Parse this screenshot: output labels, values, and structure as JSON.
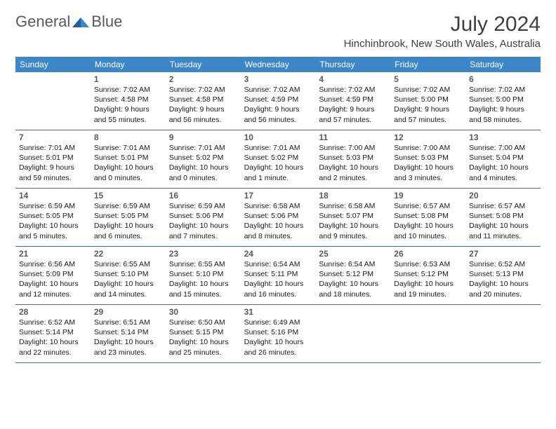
{
  "logo": {
    "text1": "General",
    "text2": "Blue"
  },
  "month_title": "July 2024",
  "location": "Hinchinbrook, New South Wales, Australia",
  "weekdays": [
    "Sunday",
    "Monday",
    "Tuesday",
    "Wednesday",
    "Thursday",
    "Friday",
    "Saturday"
  ],
  "colors": {
    "header_bg": "#3b87c8",
    "row_border": "#3b6fa0",
    "text": "#1a1a1a",
    "title": "#404040"
  },
  "weeks": [
    [
      {},
      {
        "n": "1",
        "sr": "7:02 AM",
        "ss": "4:58 PM",
        "dl": "9 hours and 55 minutes."
      },
      {
        "n": "2",
        "sr": "7:02 AM",
        "ss": "4:58 PM",
        "dl": "9 hours and 56 minutes."
      },
      {
        "n": "3",
        "sr": "7:02 AM",
        "ss": "4:59 PM",
        "dl": "9 hours and 56 minutes."
      },
      {
        "n": "4",
        "sr": "7:02 AM",
        "ss": "4:59 PM",
        "dl": "9 hours and 57 minutes."
      },
      {
        "n": "5",
        "sr": "7:02 AM",
        "ss": "5:00 PM",
        "dl": "9 hours and 57 minutes."
      },
      {
        "n": "6",
        "sr": "7:02 AM",
        "ss": "5:00 PM",
        "dl": "9 hours and 58 minutes."
      }
    ],
    [
      {
        "n": "7",
        "sr": "7:01 AM",
        "ss": "5:01 PM",
        "dl": "9 hours and 59 minutes."
      },
      {
        "n": "8",
        "sr": "7:01 AM",
        "ss": "5:01 PM",
        "dl": "10 hours and 0 minutes."
      },
      {
        "n": "9",
        "sr": "7:01 AM",
        "ss": "5:02 PM",
        "dl": "10 hours and 0 minutes."
      },
      {
        "n": "10",
        "sr": "7:01 AM",
        "ss": "5:02 PM",
        "dl": "10 hours and 1 minute."
      },
      {
        "n": "11",
        "sr": "7:00 AM",
        "ss": "5:03 PM",
        "dl": "10 hours and 2 minutes."
      },
      {
        "n": "12",
        "sr": "7:00 AM",
        "ss": "5:03 PM",
        "dl": "10 hours and 3 minutes."
      },
      {
        "n": "13",
        "sr": "7:00 AM",
        "ss": "5:04 PM",
        "dl": "10 hours and 4 minutes."
      }
    ],
    [
      {
        "n": "14",
        "sr": "6:59 AM",
        "ss": "5:05 PM",
        "dl": "10 hours and 5 minutes."
      },
      {
        "n": "15",
        "sr": "6:59 AM",
        "ss": "5:05 PM",
        "dl": "10 hours and 6 minutes."
      },
      {
        "n": "16",
        "sr": "6:59 AM",
        "ss": "5:06 PM",
        "dl": "10 hours and 7 minutes."
      },
      {
        "n": "17",
        "sr": "6:58 AM",
        "ss": "5:06 PM",
        "dl": "10 hours and 8 minutes."
      },
      {
        "n": "18",
        "sr": "6:58 AM",
        "ss": "5:07 PM",
        "dl": "10 hours and 9 minutes."
      },
      {
        "n": "19",
        "sr": "6:57 AM",
        "ss": "5:08 PM",
        "dl": "10 hours and 10 minutes."
      },
      {
        "n": "20",
        "sr": "6:57 AM",
        "ss": "5:08 PM",
        "dl": "10 hours and 11 minutes."
      }
    ],
    [
      {
        "n": "21",
        "sr": "6:56 AM",
        "ss": "5:09 PM",
        "dl": "10 hours and 12 minutes."
      },
      {
        "n": "22",
        "sr": "6:55 AM",
        "ss": "5:10 PM",
        "dl": "10 hours and 14 minutes."
      },
      {
        "n": "23",
        "sr": "6:55 AM",
        "ss": "5:10 PM",
        "dl": "10 hours and 15 minutes."
      },
      {
        "n": "24",
        "sr": "6:54 AM",
        "ss": "5:11 PM",
        "dl": "10 hours and 16 minutes."
      },
      {
        "n": "25",
        "sr": "6:54 AM",
        "ss": "5:12 PM",
        "dl": "10 hours and 18 minutes."
      },
      {
        "n": "26",
        "sr": "6:53 AM",
        "ss": "5:12 PM",
        "dl": "10 hours and 19 minutes."
      },
      {
        "n": "27",
        "sr": "6:52 AM",
        "ss": "5:13 PM",
        "dl": "10 hours and 20 minutes."
      }
    ],
    [
      {
        "n": "28",
        "sr": "6:52 AM",
        "ss": "5:14 PM",
        "dl": "10 hours and 22 minutes."
      },
      {
        "n": "29",
        "sr": "6:51 AM",
        "ss": "5:14 PM",
        "dl": "10 hours and 23 minutes."
      },
      {
        "n": "30",
        "sr": "6:50 AM",
        "ss": "5:15 PM",
        "dl": "10 hours and 25 minutes."
      },
      {
        "n": "31",
        "sr": "6:49 AM",
        "ss": "5:16 PM",
        "dl": "10 hours and 26 minutes."
      },
      {},
      {},
      {}
    ]
  ],
  "labels": {
    "sunrise": "Sunrise:",
    "sunset": "Sunset:",
    "daylight": "Daylight:"
  }
}
